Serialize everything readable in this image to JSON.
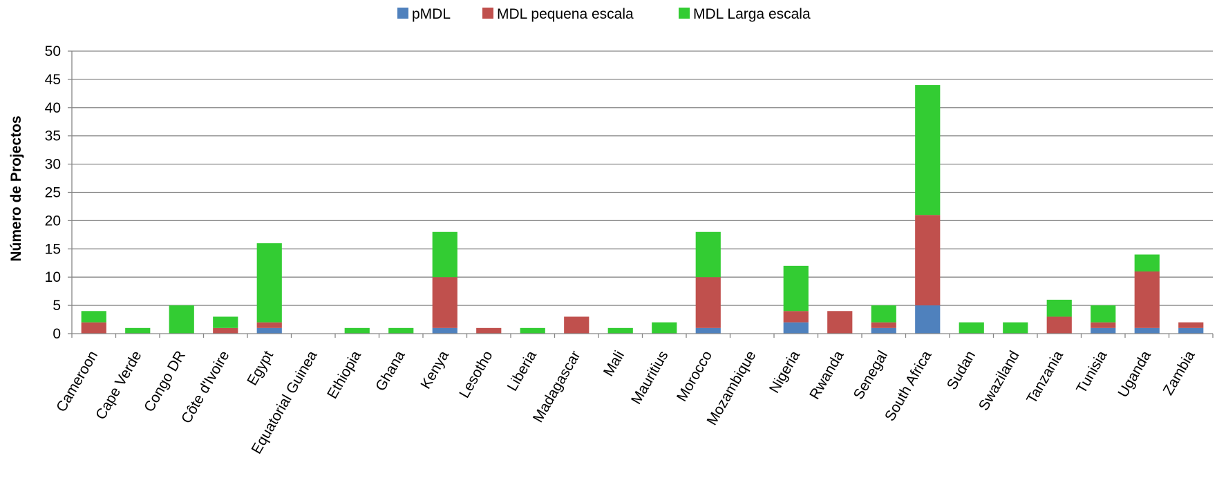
{
  "chart_data": {
    "type": "bar",
    "stacked": true,
    "title": "",
    "xlabel": "",
    "ylabel": "Número de Projectos",
    "ylim": [
      0,
      50
    ],
    "yticks": [
      0,
      5,
      10,
      15,
      20,
      25,
      30,
      35,
      40,
      45,
      50
    ],
    "grid": true,
    "legend": "top-center",
    "categories": [
      "Cameroon",
      "Cape Verde",
      "Congo DR",
      "Côte d'Ivoire",
      "Egypt",
      "Equatorial Guinea",
      "Ethiopia",
      "Ghana",
      "Kenya",
      "Lesotho",
      "Liberia",
      "Madagascar",
      "Mali",
      "Mauritius",
      "Morocco",
      "Mozambique",
      "Nigeria",
      "Rwanda",
      "Senegal",
      "South Africa",
      "Sudan",
      "Swaziland",
      "Tanzania",
      "Tunisia",
      "Uganda",
      "Zambia"
    ],
    "series": [
      {
        "name": "pMDL",
        "color": "#4f81bd",
        "values": [
          0,
          0,
          0,
          0,
          1,
          0,
          0,
          0,
          1,
          0,
          0,
          0,
          0,
          0,
          1,
          0,
          2,
          0,
          1,
          5,
          0,
          0,
          0,
          1,
          1,
          1
        ]
      },
      {
        "name": "MDL pequena escala",
        "color": "#c0504d",
        "values": [
          2,
          0,
          0,
          1,
          1,
          0,
          0,
          0,
          9,
          1,
          0,
          3,
          0,
          0,
          9,
          0,
          2,
          4,
          1,
          16,
          0,
          0,
          3,
          1,
          10,
          1
        ]
      },
      {
        "name": "MDL Larga escala",
        "color": "#33cc33",
        "values": [
          2,
          1,
          5,
          2,
          14,
          0,
          1,
          1,
          8,
          0,
          1,
          0,
          1,
          2,
          8,
          0,
          8,
          0,
          3,
          23,
          2,
          2,
          3,
          3,
          3,
          0
        ]
      }
    ]
  }
}
